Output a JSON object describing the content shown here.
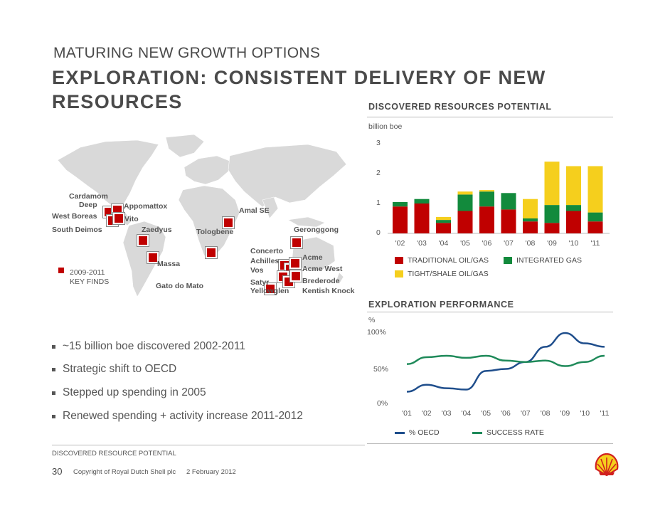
{
  "header": {
    "supertitle": "MATURING NEW GROWTH OPTIONS",
    "title": "EXPLORATION: CONSISTENT DELIVERY OF NEW RESOURCES"
  },
  "map": {
    "labels": {
      "cardamom": "Cardamom",
      "deep": "Deep",
      "appomattox": "Appomattox",
      "west_boreas": "West Boreas",
      "vito": "Vito",
      "south_deimos": "South Deimos",
      "zaedyus": "Zaedyus",
      "tologbene": "Tologbene",
      "amal_se": "Amal SE",
      "geronggong": "Geronggong",
      "massa": "Massa",
      "gato_do_mato": "Gato do Mato",
      "concerto": "Concerto",
      "achilles": "Achilles",
      "vos": "Vos",
      "satyr": "Satyr",
      "yellowglen": "Yellowglen",
      "acme": "Acme",
      "acme_west": "Acme West",
      "brederode": "Brederode",
      "kentish_knock": "Kentish Knock"
    },
    "key_line1": "2009-2011",
    "key_line2": "KEY FINDS",
    "colors": {
      "land": "#d9d9d9",
      "marker": "#c00000"
    }
  },
  "bullets": [
    "~15 billion boe discovered 2002-2011",
    "Strategic shift to OECD",
    "Stepped up spending in 2005",
    "Renewed spending + activity increase 2011-2012"
  ],
  "chart_data": [
    {
      "type": "bar",
      "title": "DISCOVERED RESOURCES POTENTIAL",
      "ylabel": "billion boe",
      "ylim": [
        0,
        3
      ],
      "yticks": [
        "0",
        "1",
        "2",
        "3"
      ],
      "categories": [
        "'02",
        "'03",
        "'04",
        "'05",
        "'06",
        "'07",
        "'08",
        "'09",
        "'10",
        "'11"
      ],
      "series": [
        {
          "name": "TRADITIONAL OIL/GAS",
          "color": "#c00000",
          "values": [
            0.9,
            1.0,
            0.35,
            0.75,
            0.9,
            0.8,
            0.4,
            0.35,
            0.75,
            0.4
          ]
        },
        {
          "name": "INTEGRATED GAS",
          "color": "#128a3c",
          "values": [
            0.15,
            0.15,
            0.1,
            0.55,
            0.5,
            0.55,
            0.1,
            0.6,
            0.2,
            0.3
          ]
        },
        {
          "name": "TIGHT/SHALE OIL/GAS",
          "color": "#f5cf1d",
          "values": [
            0,
            0,
            0.1,
            0.1,
            0.05,
            0,
            0.65,
            1.45,
            1.3,
            1.55
          ]
        }
      ],
      "stacked": true
    },
    {
      "type": "line",
      "title": "EXPLORATION PERFORMANCE",
      "ylabel": "%",
      "ylim": [
        0,
        100
      ],
      "yticks": [
        "0%",
        "50%",
        "100%"
      ],
      "x": [
        "'01",
        "'02",
        "'03",
        "'04",
        "'05",
        "'06",
        "'07",
        "'08",
        "'09",
        "'10",
        "'11"
      ],
      "series": [
        {
          "name": "% OECD",
          "color": "#1f4e8c",
          "values": [
            15,
            25,
            20,
            18,
            45,
            48,
            58,
            80,
            100,
            85,
            80
          ]
        },
        {
          "name": "SUCCESS RATE",
          "color": "#1f8a5a",
          "values": [
            55,
            65,
            67,
            64,
            67,
            60,
            58,
            60,
            52,
            58,
            67
          ]
        }
      ]
    }
  ],
  "footer": {
    "source": "DISCOVERED RESOURCE POTENTIAL",
    "page": "30",
    "copyright": "Copyright of Royal Dutch Shell plc",
    "date": "2 February 2012"
  }
}
